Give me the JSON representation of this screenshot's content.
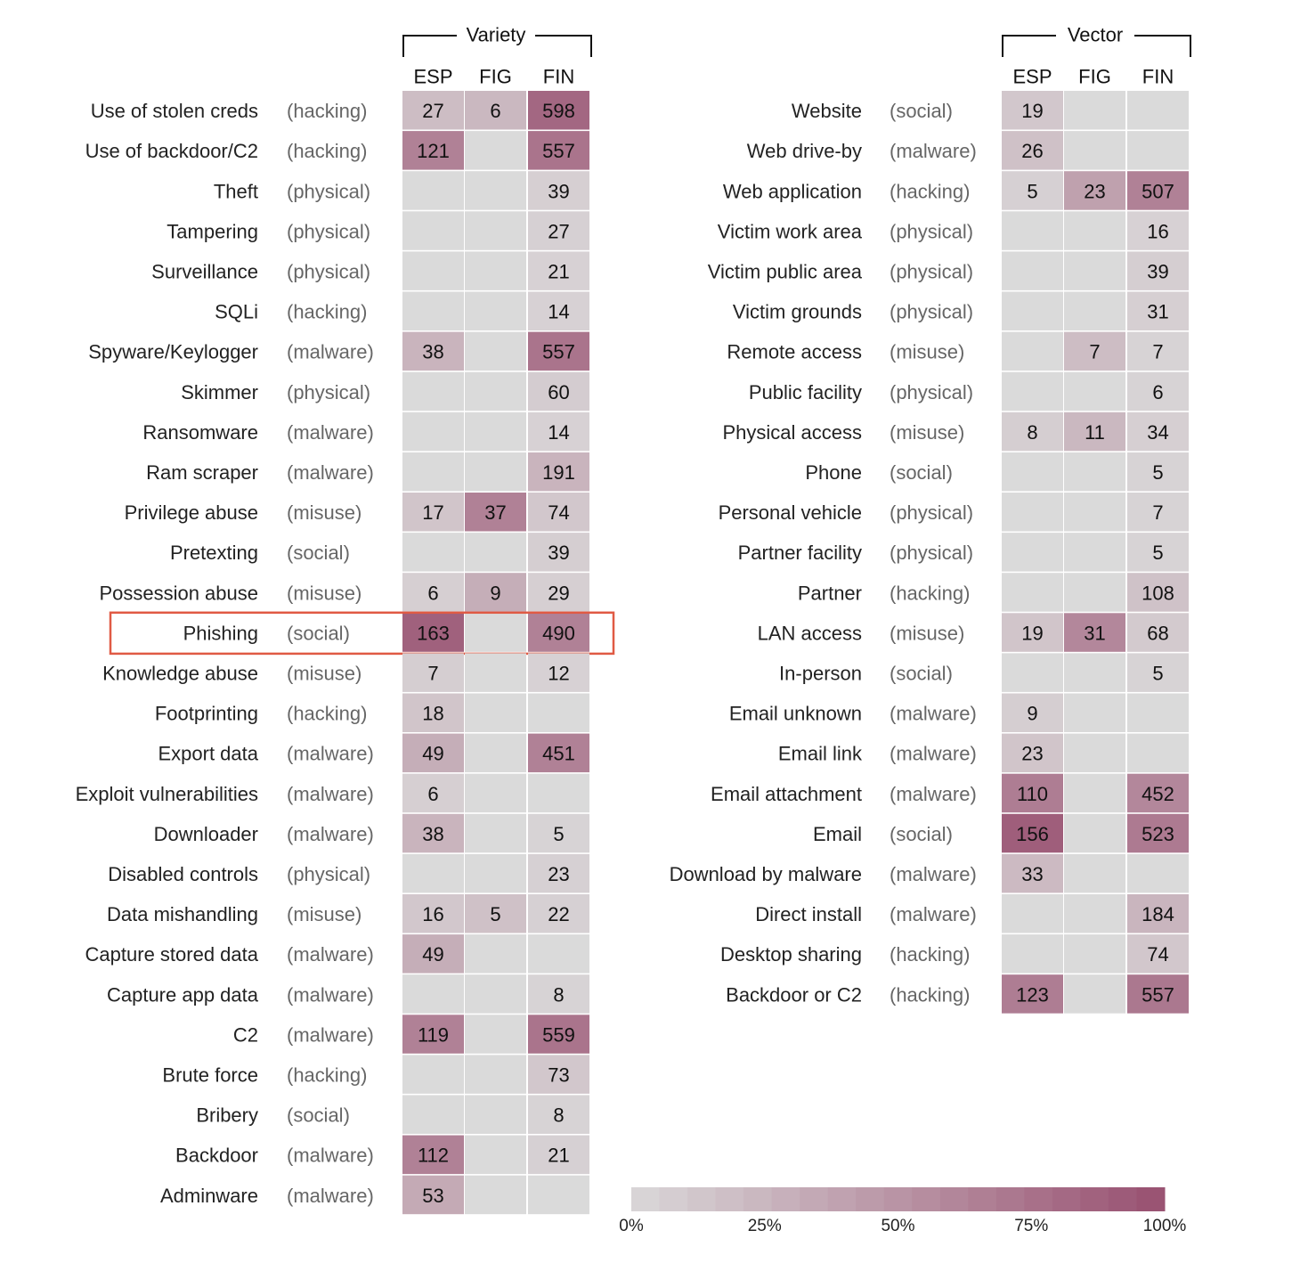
{
  "chart_data": [
    {
      "type": "heatmap",
      "title": "Variety",
      "columns": [
        "ESP",
        "FIG",
        "FIN"
      ],
      "rows": [
        {
          "label": "Use of stolen creds",
          "category": "(hacking)",
          "values": [
            27,
            6,
            598
          ]
        },
        {
          "label": "Use of backdoor/C2",
          "category": "(hacking)",
          "values": [
            121,
            null,
            557
          ]
        },
        {
          "label": "Theft",
          "category": "(physical)",
          "values": [
            null,
            null,
            39
          ]
        },
        {
          "label": "Tampering",
          "category": "(physical)",
          "values": [
            null,
            null,
            27
          ]
        },
        {
          "label": "Surveillance",
          "category": "(physical)",
          "values": [
            null,
            null,
            21
          ]
        },
        {
          "label": "SQLi",
          "category": "(hacking)",
          "values": [
            null,
            null,
            14
          ]
        },
        {
          "label": "Spyware/Keylogger",
          "category": "(malware)",
          "values": [
            38,
            null,
            557
          ]
        },
        {
          "label": "Skimmer",
          "category": "(physical)",
          "values": [
            null,
            null,
            60
          ]
        },
        {
          "label": "Ransomware",
          "category": "(malware)",
          "values": [
            null,
            null,
            14
          ]
        },
        {
          "label": "Ram scraper",
          "category": "(malware)",
          "values": [
            null,
            null,
            191
          ]
        },
        {
          "label": "Privilege abuse",
          "category": "(misuse)",
          "values": [
            17,
            37,
            74
          ]
        },
        {
          "label": "Pretexting",
          "category": "(social)",
          "values": [
            null,
            null,
            39
          ]
        },
        {
          "label": "Possession abuse",
          "category": "(misuse)",
          "values": [
            6,
            9,
            29
          ]
        },
        {
          "label": "Phishing",
          "category": "(social)",
          "values": [
            163,
            null,
            490
          ],
          "highlighted": true
        },
        {
          "label": "Knowledge abuse",
          "category": "(misuse)",
          "values": [
            7,
            null,
            12
          ]
        },
        {
          "label": "Footprinting",
          "category": "(hacking)",
          "values": [
            18,
            null,
            null
          ]
        },
        {
          "label": "Export data",
          "category": "(malware)",
          "values": [
            49,
            null,
            451
          ]
        },
        {
          "label": "Exploit vulnerabilities",
          "category": "(malware)",
          "values": [
            6,
            null,
            null
          ]
        },
        {
          "label": "Downloader",
          "category": "(malware)",
          "values": [
            38,
            null,
            5
          ]
        },
        {
          "label": "Disabled controls",
          "category": "(physical)",
          "values": [
            null,
            null,
            23
          ]
        },
        {
          "label": "Data mishandling",
          "category": "(misuse)",
          "values": [
            16,
            5,
            22
          ]
        },
        {
          "label": "Capture stored data",
          "category": "(malware)",
          "values": [
            49,
            null,
            null
          ]
        },
        {
          "label": "Capture app data",
          "category": "(malware)",
          "values": [
            null,
            null,
            8
          ]
        },
        {
          "label": "C2",
          "category": "(malware)",
          "values": [
            119,
            null,
            559
          ]
        },
        {
          "label": "Brute force",
          "category": "(hacking)",
          "values": [
            null,
            null,
            73
          ]
        },
        {
          "label": "Bribery",
          "category": "(social)",
          "values": [
            null,
            null,
            8
          ]
        },
        {
          "label": "Backdoor",
          "category": "(malware)",
          "values": [
            112,
            null,
            21
          ]
        },
        {
          "label": "Adminware",
          "category": "(malware)",
          "values": [
            53,
            null,
            null
          ]
        }
      ],
      "intensity": [
        [
          0.18,
          0.22,
          0.85
        ],
        [
          0.65,
          0,
          0.75
        ],
        [
          0,
          0,
          0.04
        ],
        [
          0,
          0,
          0.03
        ],
        [
          0,
          0,
          0.02
        ],
        [
          0,
          0,
          0.02
        ],
        [
          0.25,
          0,
          0.75
        ],
        [
          0,
          0,
          0.06
        ],
        [
          0,
          0,
          0.02
        ],
        [
          0,
          0,
          0.25
        ],
        [
          0.12,
          0.65,
          0.1
        ],
        [
          0,
          0,
          0.05
        ],
        [
          0.04,
          0.3,
          0.04
        ],
        [
          0.9,
          0,
          0.65
        ],
        [
          0.05,
          0,
          0.02
        ],
        [
          0.12,
          0,
          0
        ],
        [
          0.3,
          0,
          0.65
        ],
        [
          0.04,
          0,
          0
        ],
        [
          0.25,
          0,
          0.01
        ],
        [
          0,
          0,
          0.03
        ],
        [
          0.1,
          0.15,
          0.03
        ],
        [
          0.3,
          0,
          0
        ],
        [
          0,
          0,
          0.01
        ],
        [
          0.65,
          0,
          0.75
        ],
        [
          0,
          0,
          0.1
        ],
        [
          0,
          0,
          0.01
        ],
        [
          0.65,
          0,
          0.03
        ],
        [
          0.33,
          0,
          0
        ]
      ]
    },
    {
      "type": "heatmap",
      "title": "Vector",
      "columns": [
        "ESP",
        "FIG",
        "FIN"
      ],
      "rows": [
        {
          "label": "Website",
          "category": "(social)",
          "values": [
            19,
            null,
            null
          ]
        },
        {
          "label": "Web drive-by",
          "category": "(malware)",
          "values": [
            26,
            null,
            null
          ]
        },
        {
          "label": "Web application",
          "category": "(hacking)",
          "values": [
            5,
            23,
            507
          ]
        },
        {
          "label": "Victim work area",
          "category": "(physical)",
          "values": [
            null,
            null,
            16
          ]
        },
        {
          "label": "Victim public area",
          "category": "(physical)",
          "values": [
            null,
            null,
            39
          ]
        },
        {
          "label": "Victim grounds",
          "category": "(physical)",
          "values": [
            null,
            null,
            31
          ]
        },
        {
          "label": "Remote access",
          "category": "(misuse)",
          "values": [
            null,
            7,
            7
          ]
        },
        {
          "label": "Public facility",
          "category": "(physical)",
          "values": [
            null,
            null,
            6
          ]
        },
        {
          "label": "Physical access",
          "category": "(misuse)",
          "values": [
            8,
            11,
            34
          ]
        },
        {
          "label": "Phone",
          "category": "(social)",
          "values": [
            null,
            null,
            5
          ]
        },
        {
          "label": "Personal vehicle",
          "category": "(physical)",
          "values": [
            null,
            null,
            7
          ]
        },
        {
          "label": "Partner facility",
          "category": "(physical)",
          "values": [
            null,
            null,
            5
          ]
        },
        {
          "label": "Partner",
          "category": "(hacking)",
          "values": [
            null,
            null,
            108
          ]
        },
        {
          "label": "LAN access",
          "category": "(misuse)",
          "values": [
            19,
            31,
            68
          ]
        },
        {
          "label": "In-person",
          "category": "(social)",
          "values": [
            null,
            null,
            5
          ]
        },
        {
          "label": "Email unknown",
          "category": "(malware)",
          "values": [
            9,
            null,
            null
          ]
        },
        {
          "label": "Email link",
          "category": "(malware)",
          "values": [
            23,
            null,
            null
          ]
        },
        {
          "label": "Email attachment",
          "category": "(malware)",
          "values": [
            110,
            null,
            452
          ]
        },
        {
          "label": "Email",
          "category": "(social)",
          "values": [
            156,
            null,
            523
          ]
        },
        {
          "label": "Download by malware",
          "category": "(malware)",
          "values": [
            33,
            null,
            null
          ]
        },
        {
          "label": "Direct install",
          "category": "(malware)",
          "values": [
            null,
            null,
            184
          ]
        },
        {
          "label": "Desktop sharing",
          "category": "(hacking)",
          "values": [
            null,
            null,
            74
          ]
        },
        {
          "label": "Backdoor or C2",
          "category": "(hacking)",
          "values": [
            123,
            null,
            557
          ]
        }
      ],
      "intensity": [
        [
          0.1,
          0,
          0
        ],
        [
          0.15,
          0,
          0
        ],
        [
          0.03,
          0.4,
          0.65
        ],
        [
          0,
          0,
          0.02
        ],
        [
          0,
          0,
          0.05
        ],
        [
          0,
          0,
          0.04
        ],
        [
          0,
          0.18,
          0.01
        ],
        [
          0,
          0,
          0.01
        ],
        [
          0.05,
          0.22,
          0.04
        ],
        [
          0,
          0,
          0.01
        ],
        [
          0,
          0,
          0.01
        ],
        [
          0,
          0,
          0.01
        ],
        [
          0,
          0,
          0.14
        ],
        [
          0.12,
          0.6,
          0.08
        ],
        [
          0,
          0,
          0.01
        ],
        [
          0.05,
          0,
          0
        ],
        [
          0.12,
          0,
          0
        ],
        [
          0.68,
          0,
          0.6
        ],
        [
          0.92,
          0,
          0.7
        ],
        [
          0.2,
          0,
          0
        ],
        [
          0,
          0,
          0.24
        ],
        [
          0,
          0,
          0.1
        ],
        [
          0.68,
          0,
          0.72
        ]
      ]
    }
  ],
  "legend": {
    "tick_labels": [
      "0%",
      "25%",
      "50%",
      "75%",
      "100%"
    ],
    "ticks": [
      0,
      0.25,
      0.5,
      0.75,
      1
    ]
  },
  "colors": {
    "cell_empty": "#dadada",
    "cell_min": "#d8d4d6",
    "cell_max": "#9a5473",
    "highlight_box": "#e05a44"
  }
}
